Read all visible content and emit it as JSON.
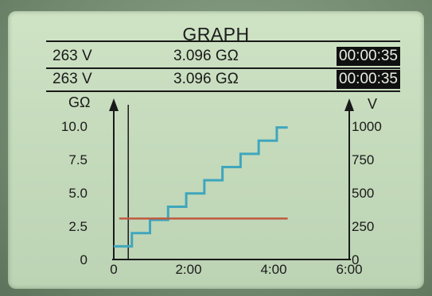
{
  "screen": {
    "title": "GRAPH",
    "readings": [
      {
        "voltage": "263 V",
        "resistance": "3.096 GΩ",
        "elapsed": "00:00:35"
      },
      {
        "voltage": "263 V",
        "resistance": "3.096 GΩ",
        "elapsed": "00:00:35"
      }
    ]
  },
  "chart_data": {
    "type": "line",
    "left_axis": {
      "label": "GΩ",
      "ticks": [
        "10.0",
        "7.5",
        "5.0",
        "2.5",
        "0"
      ],
      "range": [
        0,
        12.5
      ]
    },
    "right_axis": {
      "label": "V",
      "ticks": [
        "1000",
        "750",
        "500",
        "250",
        "0"
      ],
      "range": [
        0,
        1250
      ]
    },
    "x_axis": {
      "ticks": [
        "0",
        "2:00",
        "4:00",
        "6:00"
      ],
      "range_minutes": [
        0,
        6.5
      ]
    },
    "cursor_minutes": 0.4,
    "series": [
      {
        "color": "#3fa6bd",
        "axis": "left",
        "step": true,
        "x_minutes": [
          0,
          0.5,
          1.0,
          1.5,
          2.0,
          2.5,
          3.0,
          3.5,
          4.0,
          4.5,
          4.8
        ],
        "y": [
          1.0,
          2.0,
          3.0,
          4.0,
          5.0,
          6.0,
          7.0,
          8.0,
          9.0,
          10.0,
          10.0
        ]
      },
      {
        "color": "#c05a40",
        "axis": "left",
        "step": false,
        "x_minutes": [
          0.15,
          4.8
        ],
        "y": [
          3.1,
          3.1
        ]
      }
    ]
  }
}
